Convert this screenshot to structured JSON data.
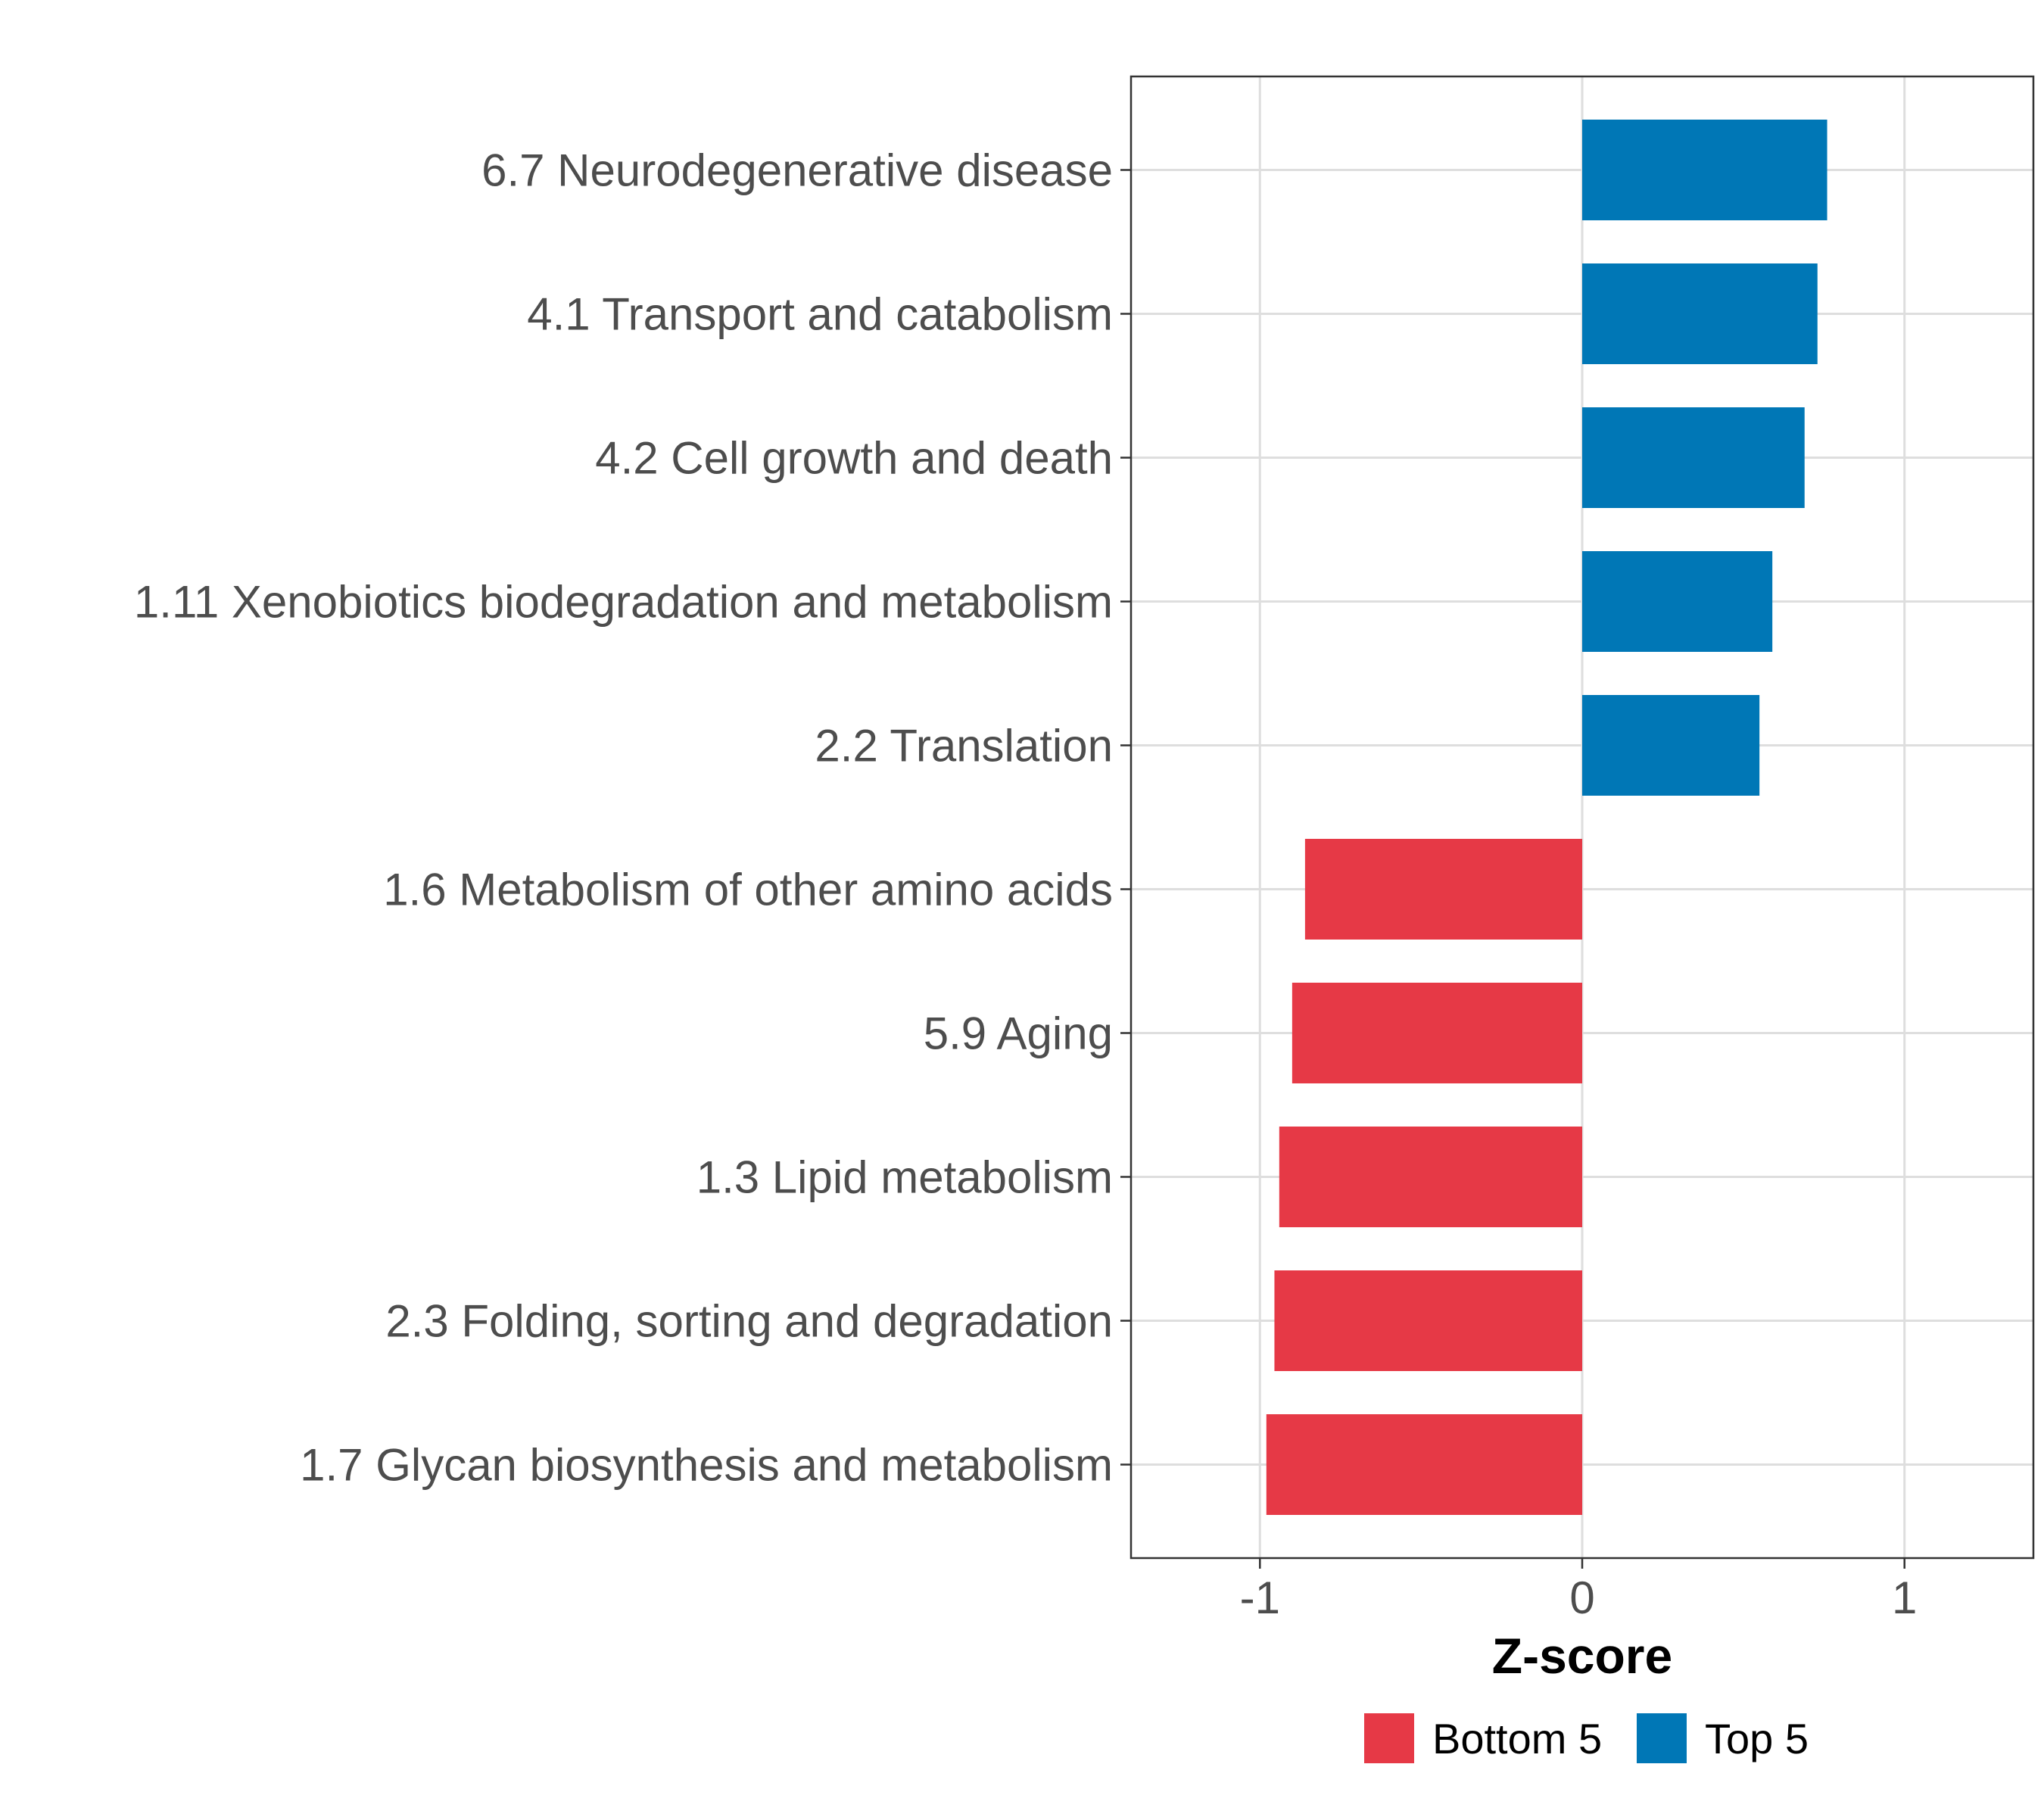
{
  "chart_data": {
    "type": "bar",
    "orientation": "horizontal",
    "xlabel": "Z-score",
    "xlim": [
      -1.4,
      1.4
    ],
    "xticks": [
      {
        "value": -1,
        "label": "-1"
      },
      {
        "value": 0,
        "label": "0"
      },
      {
        "value": 1,
        "label": "1"
      }
    ],
    "grid": true,
    "legend_position": "bottom",
    "series": [
      {
        "name": "Bottom 5",
        "color": "#E63946"
      },
      {
        "name": "Top 5",
        "color": "#0077B6"
      }
    ],
    "bars": [
      {
        "category": "6.7 Neurodegenerative disease",
        "value": 0.76,
        "series": "Top 5"
      },
      {
        "category": "4.1 Transport and catabolism",
        "value": 0.73,
        "series": "Top 5"
      },
      {
        "category": "4.2 Cell growth and death",
        "value": 0.69,
        "series": "Top 5"
      },
      {
        "category": "1.11 Xenobiotics biodegradation and metabolism",
        "value": 0.59,
        "series": "Top 5"
      },
      {
        "category": "2.2 Translation",
        "value": 0.55,
        "series": "Top 5"
      },
      {
        "category": "1.6 Metabolism of other amino acids",
        "value": -0.86,
        "series": "Bottom 5"
      },
      {
        "category": "5.9 Aging",
        "value": -0.9,
        "series": "Bottom 5"
      },
      {
        "category": "1.3 Lipid metabolism",
        "value": -0.94,
        "series": "Bottom 5"
      },
      {
        "category": "2.3 Folding, sorting and degradation",
        "value": -0.955,
        "series": "Bottom 5"
      },
      {
        "category": "1.7 Glycan biosynthesis and metabolism",
        "value": -0.98,
        "series": "Bottom 5"
      }
    ]
  }
}
